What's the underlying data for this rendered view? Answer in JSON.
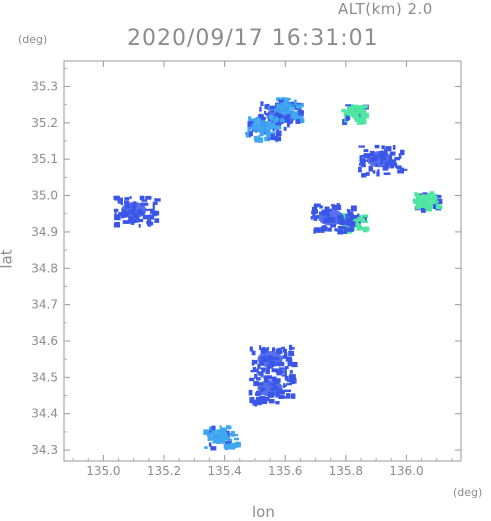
{
  "header": {
    "altitude": "ALT(km) 2.0",
    "timestamp": "2020/09/17 16:31:01"
  },
  "axes": {
    "x_unit": "(deg)",
    "y_unit": "(deg)",
    "x_label": "lon",
    "y_label": "lat"
  },
  "chart_data": {
    "type": "heatmap",
    "title": "",
    "xlabel": "lon",
    "ylabel": "lat",
    "xlim": [
      134.87,
      136.18
    ],
    "ylim": [
      34.27,
      35.37
    ],
    "x_ticks": [
      "135.0",
      "135.2",
      "135.4",
      "135.6",
      "135.8",
      "136.0"
    ],
    "y_ticks": [
      "34.3",
      "34.4",
      "34.5",
      "34.6",
      "34.7",
      "34.8",
      "34.9",
      "35.0",
      "35.1",
      "35.2",
      "35.3"
    ],
    "grid": false,
    "colors": {
      "weak": "#3a56e8",
      "moderate": "#3fa8f0",
      "strong": "#4ee6a0"
    },
    "echoes": [
      {
        "lon": 135.58,
        "lat": 35.22,
        "level": "weak"
      },
      {
        "lon": 135.52,
        "lat": 35.19,
        "level": "moderate"
      },
      {
        "lon": 135.6,
        "lat": 35.24,
        "level": "moderate"
      },
      {
        "lon": 135.82,
        "lat": 35.23,
        "level": "strong"
      },
      {
        "lon": 135.91,
        "lat": 35.1,
        "level": "weak"
      },
      {
        "lon": 136.06,
        "lat": 34.99,
        "level": "strong"
      },
      {
        "lon": 135.82,
        "lat": 34.93,
        "level": "strong"
      },
      {
        "lon": 135.75,
        "lat": 34.94,
        "level": "weak"
      },
      {
        "lon": 135.55,
        "lat": 34.55,
        "level": "weak"
      },
      {
        "lon": 135.55,
        "lat": 34.47,
        "level": "weak"
      },
      {
        "lon": 135.38,
        "lat": 34.34,
        "level": "moderate"
      },
      {
        "lon": 135.1,
        "lat": 34.96,
        "level": "weak"
      }
    ]
  }
}
